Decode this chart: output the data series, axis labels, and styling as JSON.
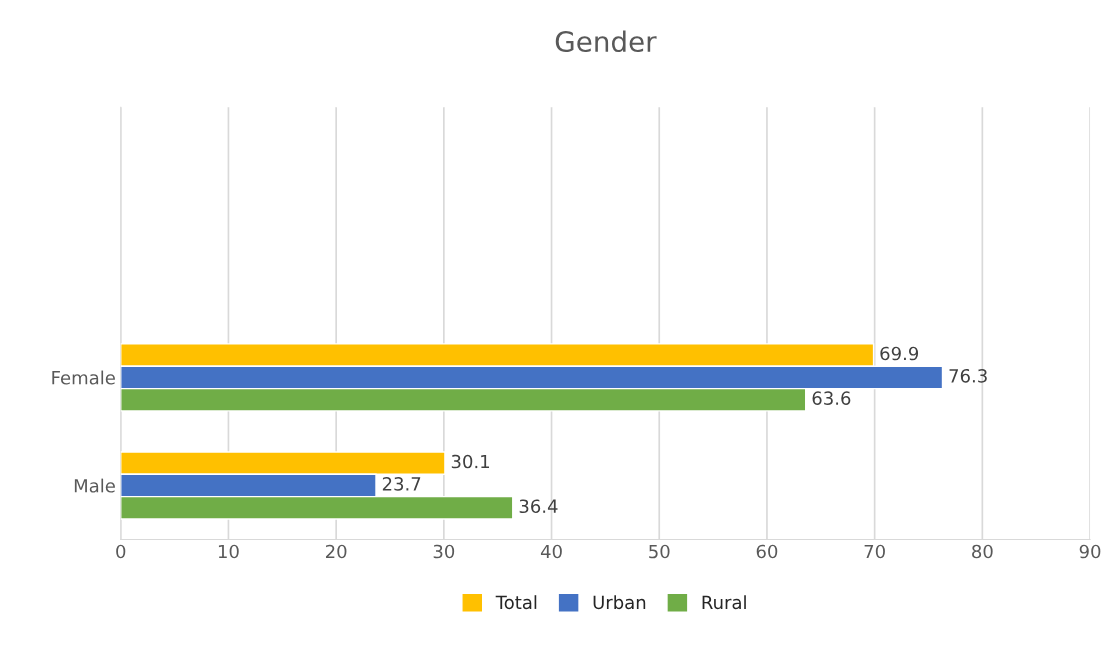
{
  "chart_data": {
    "type": "bar",
    "orientation": "horizontal",
    "title": "Gender",
    "categories": [
      null,
      null,
      "Female",
      "Male"
    ],
    "series": [
      {
        "name": "Total",
        "color": "#ffc000",
        "values": [
          null,
          null,
          69.9,
          30.1
        ]
      },
      {
        "name": "Urban",
        "color": "#4472c4",
        "values": [
          null,
          null,
          76.3,
          23.7
        ]
      },
      {
        "name": "Rural",
        "color": "#70ad47",
        "values": [
          null,
          null,
          63.6,
          36.4
        ]
      }
    ],
    "xlim": [
      0,
      90
    ],
    "xticks": [
      0,
      10,
      20,
      30,
      40,
      50,
      60,
      70,
      80,
      90
    ],
    "grid": "x",
    "legend": "bottom",
    "data_labels": true
  }
}
